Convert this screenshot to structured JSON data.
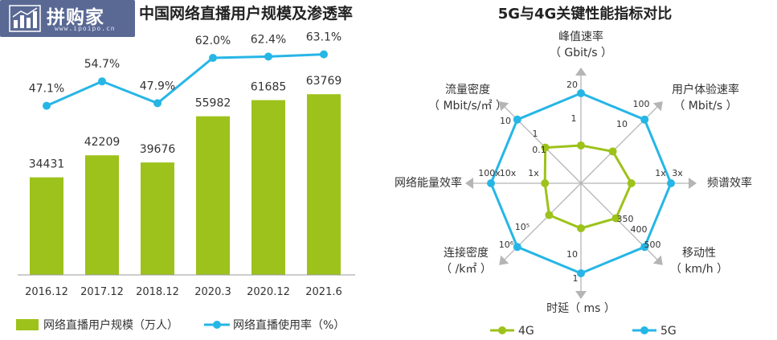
{
  "watermark": {
    "brand": "拼购家",
    "url": "www.ipoipo.cn"
  },
  "chart_data": [
    {
      "type": "bar",
      "title": "中国网络直播用户规模及渗透率",
      "categories": [
        "2016.12",
        "2017.12",
        "2018.12",
        "2020.3",
        "2020.12",
        "2021.6"
      ],
      "series": [
        {
          "name": "网络直播用户规模（万人）",
          "type": "bar",
          "color": "#9dc21b",
          "values": [
            34431,
            42209,
            39676,
            55982,
            61685,
            63769
          ]
        },
        {
          "name": "网络直播使用率（%）",
          "type": "line",
          "color": "#26b6e6",
          "values": [
            47.1,
            54.7,
            47.9,
            62.0,
            62.4,
            63.1
          ],
          "labels": [
            "47.1%",
            "54.7%",
            "47.9%",
            "62.0%",
            "62.4%",
            "63.1%"
          ]
        }
      ],
      "bar_ylim": [
        0,
        80000
      ],
      "line_ylim": [
        0,
        100
      ],
      "legend_position": "bottom",
      "grid": false
    },
    {
      "type": "radar",
      "title": "5G与4G关键性能指标对比",
      "axes": [
        {
          "name": "峰值速率",
          "unit": "（ Gbit/s ）",
          "g4": "1",
          "g5": "20"
        },
        {
          "name": "用户体验速率",
          "unit": "（ Mbit/s ）",
          "g4": "10",
          "g5": "100"
        },
        {
          "name": "频谱效率",
          "unit": "",
          "g4": "1x",
          "g5": "3x"
        },
        {
          "name": "移动性",
          "unit": "（ km/h ）",
          "g4": "350",
          "g5": "500",
          "mid": "400"
        },
        {
          "name": "时延（ ms ）",
          "unit": "",
          "g4": "10",
          "g5": "1"
        },
        {
          "name": "连接密度",
          "unit": "（ /k㎡ ）",
          "g4": "10⁵",
          "g5": "10⁶"
        },
        {
          "name": "网络能量效率",
          "unit": "",
          "g4": "1x",
          "g5": "100x",
          "mid": "10x"
        },
        {
          "name": "流量密度",
          "unit": "（ Mbit/s/㎡ ）",
          "g4": "0.1",
          "g5": "10",
          "mid": "1"
        }
      ],
      "series": [
        {
          "name": "4G",
          "color": "#9dc21b",
          "values": [
            0.42,
            0.5,
            0.56,
            0.55,
            0.5,
            0.5,
            0.4,
            0.56
          ]
        },
        {
          "name": "5G",
          "color": "#26b6e6",
          "values": [
            1,
            1,
            1,
            1,
            1,
            1,
            1,
            1
          ]
        }
      ],
      "legend_position": "bottom"
    }
  ]
}
